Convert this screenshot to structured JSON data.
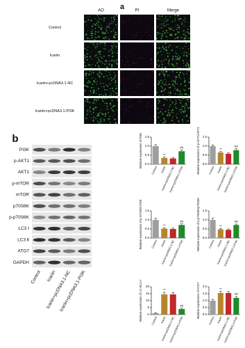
{
  "panel_a": {
    "label": "a",
    "columns": [
      "AO",
      "PI",
      "Merge"
    ],
    "rows": [
      "Control",
      "Icariin",
      "Icariin+pcDNA3.1-NC",
      "Icariin+pcDNA3.1-PI3K"
    ]
  },
  "panel_b": {
    "label": "b",
    "blots": [
      "PI3K",
      "p-AKT1",
      "AKT1",
      "p-mTOR",
      "mTOR",
      "p70S6K",
      "p-p70S6K",
      "LC3 Ⅰ",
      "LC3 Ⅱ",
      "ATG7",
      "GAPDH"
    ],
    "lanes": [
      "Control",
      "Icariin",
      "Icariin+pcDNA3.1-NC",
      "Icariin+pcDNA3.1-PI3K"
    ]
  },
  "chart_data": [
    {
      "type": "bar",
      "ylabel": "Relative expression of PI3K",
      "categories": [
        "Control",
        "Icariin",
        "Icariin+pcDNA3.1-NC",
        "Icariin+pcDNA3.1-PI3K"
      ],
      "values": [
        1.0,
        0.35,
        0.32,
        0.72
      ],
      "errors": [
        0.08,
        0.05,
        0.04,
        0.07
      ],
      "annotations": [
        null,
        "**",
        null,
        "##"
      ],
      "colors": [
        "#9e9e9e",
        "#b5852e",
        "#c0282a",
        "#1f8a2a"
      ],
      "ylim": [
        0,
        1.5
      ],
      "yticks": [
        {
          "value": 0,
          "label": "0.0"
        },
        {
          "value": 0.5,
          "label": "0.5"
        },
        {
          "value": 1,
          "label": "1.0"
        },
        {
          "value": 1.5,
          "label": "1.5"
        }
      ]
    },
    {
      "type": "bar",
      "ylabel": "Relative expression of p-AKT1/AKT1",
      "categories": [
        "Control",
        "Icariin",
        "Icariin+pcDNA3.1-NC",
        "Icariin+pcDNA3.1-PI3K"
      ],
      "values": [
        1.0,
        0.65,
        0.58,
        0.78
      ],
      "errors": [
        0.07,
        0.05,
        0.05,
        0.07
      ],
      "annotations": [
        null,
        "**",
        null,
        "##"
      ],
      "colors": [
        "#9e9e9e",
        "#b5852e",
        "#c0282a",
        "#1f8a2a"
      ],
      "ylim": [
        0,
        1.5
      ],
      "yticks": [
        {
          "value": 0,
          "label": "0.0"
        },
        {
          "value": 0.5,
          "label": "0.5"
        },
        {
          "value": 1,
          "label": "1.0"
        },
        {
          "value": 1.5,
          "label": "1.5"
        }
      ]
    },
    {
      "type": "bar",
      "ylabel": "Relative expression of p-mTOR/mTOR",
      "categories": [
        "Control",
        "Icariin",
        "Icariin+pcDNA3.1-NC",
        "Icariin+pcDNA3.1-PI3K"
      ],
      "values": [
        1.0,
        0.52,
        0.5,
        0.72
      ],
      "errors": [
        0.09,
        0.05,
        0.05,
        0.06
      ],
      "annotations": [
        null,
        "**",
        null,
        "##"
      ],
      "colors": [
        "#9e9e9e",
        "#b5852e",
        "#c0282a",
        "#1f8a2a"
      ],
      "ylim": [
        0,
        1.5
      ],
      "yticks": [
        {
          "value": 0,
          "label": "0.0"
        },
        {
          "value": 0.5,
          "label": "0.5"
        },
        {
          "value": 1,
          "label": "1.0"
        },
        {
          "value": 1.5,
          "label": "1.5"
        }
      ]
    },
    {
      "type": "bar",
      "ylabel": "Relative expression of p-p70S6K/p70S6K",
      "categories": [
        "Control",
        "Icariin",
        "Icariin+pcDNA3.1-NC",
        "Icariin+pcDNA3.1-PI3K"
      ],
      "values": [
        1.0,
        0.48,
        0.45,
        0.72
      ],
      "errors": [
        0.09,
        0.05,
        0.05,
        0.05
      ],
      "annotations": [
        null,
        "**",
        null,
        "##"
      ],
      "colors": [
        "#9e9e9e",
        "#b5852e",
        "#c0282a",
        "#1f8a2a"
      ],
      "ylim": [
        0,
        1.5
      ],
      "yticks": [
        {
          "value": 0,
          "label": "0.0"
        },
        {
          "value": 0.5,
          "label": "0.5"
        },
        {
          "value": 1,
          "label": "1.0"
        },
        {
          "value": 1.5,
          "label": "1.5"
        }
      ]
    },
    {
      "type": "bar",
      "ylabel": "Relative expression of LC-II/LC-I",
      "categories": [
        "Control",
        "Icariin",
        "Icariin+pcDNA3.1-NC",
        "Icariin+pcDNA3.1-PI3K"
      ],
      "values": [
        1,
        14.5,
        14.5,
        4
      ],
      "errors": [
        0.3,
        1.5,
        1.3,
        0.6
      ],
      "annotations": [
        null,
        "**",
        null,
        "##"
      ],
      "colors": [
        "#9e9e9e",
        "#b5852e",
        "#c0282a",
        "#1f8a2a"
      ],
      "ylim": [
        0,
        20
      ],
      "yticks": [
        0,
        5,
        10,
        15,
        20
      ]
    },
    {
      "type": "bar",
      "ylabel": "Relative expression of ATG7",
      "categories": [
        "Control",
        "Icariin",
        "Icariin+pcDNA3.1-NC",
        "Icariin+pcDNA3.1-PI3K"
      ],
      "values": [
        1.0,
        1.55,
        1.55,
        1.2
      ],
      "errors": [
        0.1,
        0.12,
        0.1,
        0.1
      ],
      "annotations": [
        null,
        "**",
        null,
        "##"
      ],
      "colors": [
        "#9e9e9e",
        "#b5852e",
        "#c0282a",
        "#1f8a2a"
      ],
      "ylim": [
        0,
        2
      ],
      "yticks": [
        {
          "value": 0,
          "label": "0.0"
        },
        {
          "value": 0.5,
          "label": "0.5"
        },
        {
          "value": 1,
          "label": "1.0"
        },
        {
          "value": 1.5,
          "label": "1.5"
        },
        {
          "value": 2,
          "label": "2.0"
        }
      ]
    }
  ]
}
